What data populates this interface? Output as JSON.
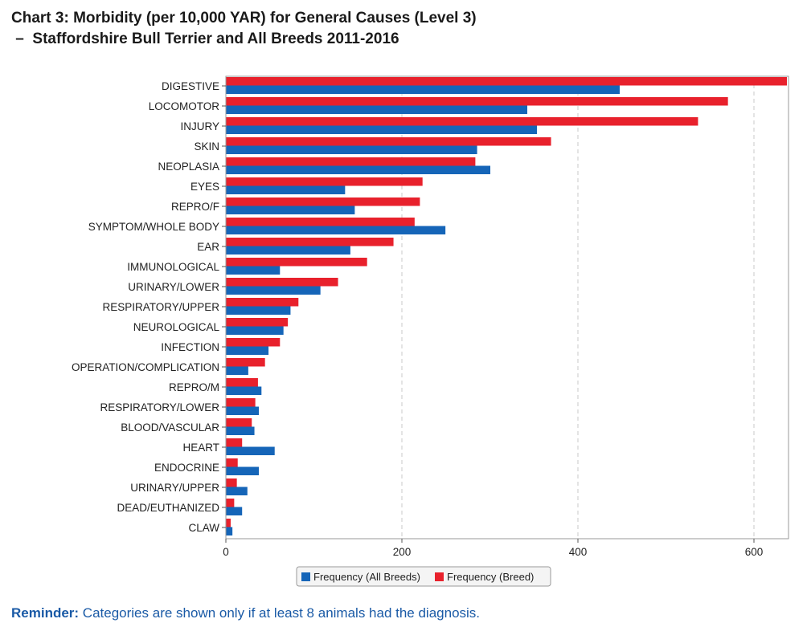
{
  "title": {
    "line1": "Chart 3: Morbidity (per 10,000 YAR) for General Causes (Level 3)",
    "line2": " –  Staffordshire Bull Terrier and All Breeds 2011-2016"
  },
  "reminder": {
    "prefix": "Reminder:",
    "text": " Categories are shown only if at least 8 animals had the diagnosis."
  },
  "colors": {
    "breed": "#e8212c",
    "all_breeds": "#1565b8",
    "grid": "#c8c8c8",
    "axis": "#555555",
    "label": "#222222"
  },
  "chart_data": {
    "type": "bar",
    "orientation": "horizontal",
    "categories": [
      "DIGESTIVE",
      "LOCOMOTOR",
      "INJURY",
      "SKIN",
      "NEOPLASIA",
      "EYES",
      "REPRO/F",
      "SYMPTOM/WHOLE BODY",
      "EAR",
      "IMMUNOLOGICAL",
      "URINARY/LOWER",
      "RESPIRATORY/UPPER",
      "NEUROLOGICAL",
      "INFECTION",
      "OPERATION/COMPLICATION",
      "REPRO/M",
      "RESPIRATORY/LOWER",
      "BLOOD/VASCULAR",
      "HEART",
      "ENDOCRINE",
      "URINARY/UPPER",
      "DEAD/EUTHANIZED",
      "CLAW"
    ],
    "series": [
      {
        "name": "Frequency (Breed)",
        "values": [
          637,
          570,
          536,
          369,
          283,
          223,
          220,
          214,
          190,
          160,
          127,
          82,
          70,
          61,
          44,
          36,
          33,
          29,
          18,
          13,
          12,
          9,
          5
        ]
      },
      {
        "name": "Frequency (All Breeds)",
        "values": [
          447,
          342,
          353,
          285,
          300,
          135,
          146,
          249,
          141,
          61,
          107,
          73,
          65,
          48,
          25,
          40,
          37,
          32,
          55,
          37,
          24,
          18,
          7
        ]
      }
    ],
    "legend_items": [
      "Frequency (All Breeds)",
      "Frequency (Breed)"
    ],
    "xlim": [
      0,
      640
    ],
    "xticks": [
      0,
      200,
      400,
      600
    ],
    "grid": "vertical dashed",
    "legend_position": "bottom-center"
  }
}
